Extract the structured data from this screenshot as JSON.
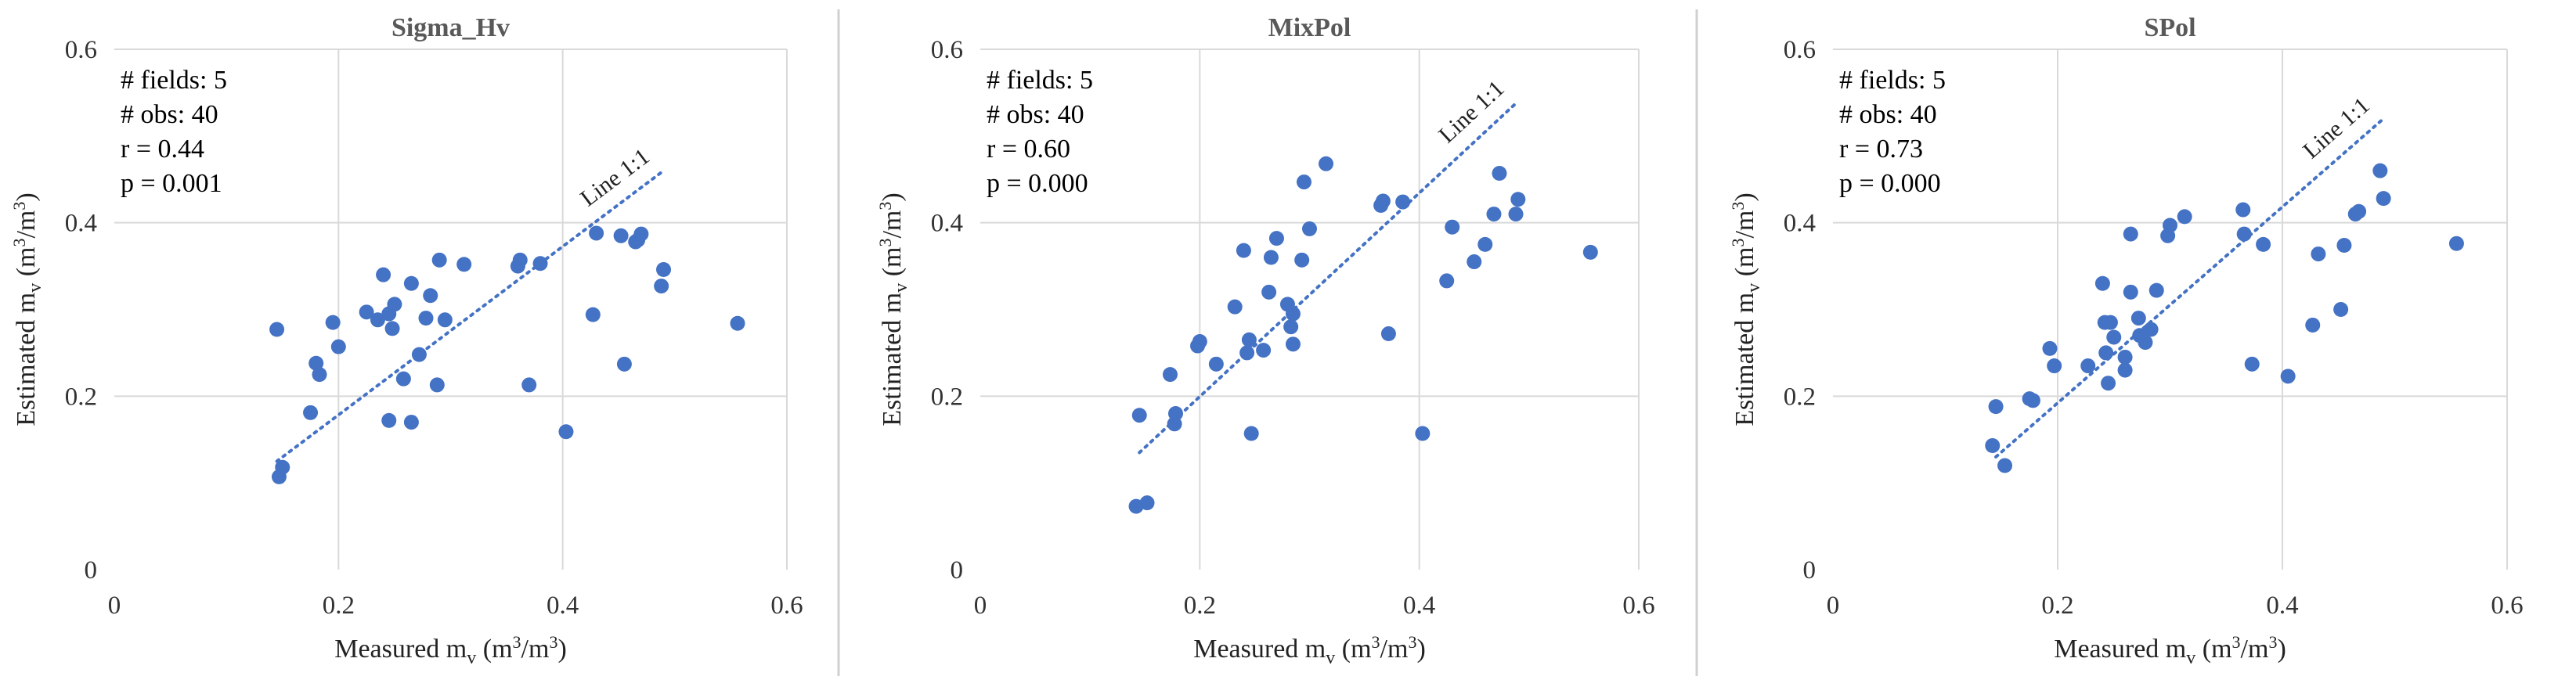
{
  "chart_data": [
    {
      "type": "scatter",
      "title": "Sigma_Hv",
      "xlabel": "Measured m_v (m³/m³)",
      "ylabel": "Estimated m_v (m³/m³)",
      "xlabel_main": "Measured m",
      "ylabel_main": "Estimated m",
      "label_sub": "v",
      "label_unit_open": " (m",
      "label_unit_mid": "/m",
      "label_unit_close": ")",
      "label_sup": "3",
      "xlim": [
        0,
        0.6
      ],
      "ylim": [
        0,
        0.6
      ],
      "x_ticks": [
        "0",
        "0.2",
        "0.4",
        "0.6"
      ],
      "y_ticks": [
        "0",
        "0.2",
        "0.4",
        "0.6"
      ],
      "x_tick_values": [
        0,
        0.2,
        0.4,
        0.6
      ],
      "y_tick_values": [
        0,
        0.2,
        0.4,
        0.6
      ],
      "grid": true,
      "stats": [
        "# fields: 5",
        "# obs: 40",
        "r = 0.44",
        "p = 0.001"
      ],
      "reference_line": {
        "label": "Line 1:1",
        "x": [
          0.145,
          0.49
        ],
        "y": [
          0.125,
          0.46
        ]
      },
      "points": {
        "x": [
          0.145,
          0.147,
          0.15,
          0.175,
          0.18,
          0.183,
          0.195,
          0.2,
          0.225,
          0.235,
          0.24,
          0.245,
          0.245,
          0.248,
          0.25,
          0.258,
          0.265,
          0.265,
          0.272,
          0.278,
          0.282,
          0.288,
          0.29,
          0.295,
          0.312,
          0.36,
          0.362,
          0.37,
          0.38,
          0.403,
          0.427,
          0.43,
          0.452,
          0.455,
          0.465,
          0.467,
          0.47,
          0.488,
          0.49,
          0.556
        ],
        "y": [
          0.277,
          0.107,
          0.118,
          0.181,
          0.238,
          0.225,
          0.285,
          0.257,
          0.297,
          0.288,
          0.34,
          0.295,
          0.172,
          0.278,
          0.306,
          0.22,
          0.33,
          0.17,
          0.248,
          0.29,
          0.316,
          0.213,
          0.357,
          0.288,
          0.352,
          0.35,
          0.357,
          0.213,
          0.353,
          0.159,
          0.294,
          0.388,
          0.385,
          0.237,
          0.378,
          0.38,
          0.387,
          0.327,
          0.346,
          0.284
        ]
      }
    },
    {
      "type": "scatter",
      "title": "MixPol",
      "xlabel": "Measured m_v (m³/m³)",
      "ylabel": "Estimated m_v (m³/m³)",
      "xlabel_main": "Measured m",
      "ylabel_main": "Estimated m",
      "label_sub": "v",
      "label_unit_open": " (m",
      "label_unit_mid": "/m",
      "label_unit_close": ")",
      "label_sup": "3",
      "xlim": [
        0,
        0.6
      ],
      "ylim": [
        0,
        0.6
      ],
      "x_ticks": [
        "0",
        "0.2",
        "0.4",
        "0.6"
      ],
      "y_ticks": [
        "0",
        "0.2",
        "0.4",
        "0.6"
      ],
      "x_tick_values": [
        0,
        0.2,
        0.4,
        0.6
      ],
      "y_tick_values": [
        0,
        0.2,
        0.4,
        0.6
      ],
      "grid": true,
      "stats": [
        "# fields: 5",
        "# obs: 40",
        "r = 0.60",
        "p = 0.000"
      ],
      "reference_line": {
        "label": "Line 1:1",
        "x": [
          0.145,
          0.49
        ],
        "y": [
          0.135,
          0.54
        ]
      },
      "points": {
        "x": [
          0.142,
          0.145,
          0.152,
          0.173,
          0.177,
          0.178,
          0.198,
          0.2,
          0.215,
          0.232,
          0.24,
          0.243,
          0.245,
          0.247,
          0.258,
          0.263,
          0.265,
          0.27,
          0.28,
          0.283,
          0.285,
          0.285,
          0.293,
          0.295,
          0.3,
          0.315,
          0.365,
          0.367,
          0.372,
          0.385,
          0.403,
          0.425,
          0.43,
          0.45,
          0.46,
          0.468,
          0.473,
          0.488,
          0.49,
          0.556
        ],
        "y": [
          0.073,
          0.178,
          0.077,
          0.225,
          0.168,
          0.18,
          0.258,
          0.263,
          0.237,
          0.303,
          0.368,
          0.25,
          0.265,
          0.157,
          0.253,
          0.32,
          0.36,
          0.382,
          0.306,
          0.28,
          0.26,
          0.295,
          0.357,
          0.447,
          0.393,
          0.468,
          0.42,
          0.425,
          0.272,
          0.424,
          0.157,
          0.333,
          0.395,
          0.355,
          0.375,
          0.41,
          0.457,
          0.41,
          0.427,
          0.366
        ]
      }
    },
    {
      "type": "scatter",
      "title": "SPol",
      "xlabel": "Measured m_v (m³/m³)",
      "ylabel": "Estimated m_v (m³/m³)",
      "xlabel_main": "Measured m",
      "ylabel_main": "Estimated m",
      "label_sub": "v",
      "label_unit_open": " (m",
      "label_unit_mid": "/m",
      "label_unit_close": ")",
      "label_sup": "3",
      "xlim": [
        0,
        0.6
      ],
      "ylim": [
        0,
        0.6
      ],
      "x_ticks": [
        "0",
        "0.2",
        "0.4",
        "0.6"
      ],
      "y_ticks": [
        "0",
        "0.2",
        "0.4",
        "0.6"
      ],
      "x_tick_values": [
        0,
        0.2,
        0.4,
        0.6
      ],
      "y_tick_values": [
        0,
        0.2,
        0.4,
        0.6
      ],
      "grid": true,
      "stats": [
        "# fields: 5",
        "# obs: 40",
        "r = 0.73",
        "p = 0.000"
      ],
      "reference_line": {
        "label": "Line 1:1",
        "x": [
          0.145,
          0.49
        ],
        "y": [
          0.13,
          0.52
        ]
      },
      "points": {
        "x": [
          0.142,
          0.145,
          0.153,
          0.175,
          0.178,
          0.193,
          0.197,
          0.227,
          0.24,
          0.242,
          0.243,
          0.245,
          0.247,
          0.25,
          0.26,
          0.265,
          0.265,
          0.272,
          0.273,
          0.278,
          0.283,
          0.288,
          0.298,
          0.3,
          0.313,
          0.365,
          0.366,
          0.373,
          0.383,
          0.405,
          0.427,
          0.432,
          0.452,
          0.455,
          0.465,
          0.468,
          0.487,
          0.49,
          0.555,
          0.26
        ],
        "y": [
          0.143,
          0.188,
          0.12,
          0.197,
          0.195,
          0.255,
          0.235,
          0.235,
          0.33,
          0.285,
          0.25,
          0.215,
          0.285,
          0.268,
          0.23,
          0.387,
          0.32,
          0.29,
          0.27,
          0.262,
          0.277,
          0.322,
          0.385,
          0.397,
          0.407,
          0.415,
          0.387,
          0.237,
          0.375,
          0.223,
          0.282,
          0.364,
          0.3,
          0.374,
          0.41,
          0.413,
          0.46,
          0.428,
          0.376,
          0.245
        ]
      }
    }
  ]
}
